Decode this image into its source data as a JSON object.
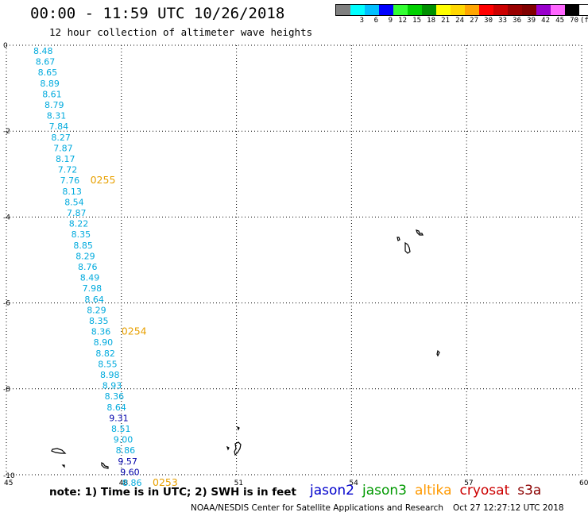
{
  "header": {
    "title": "00:00 - 11:59 UTC 10/26/2018",
    "subtitle": "12 hour collection of altimeter wave heights"
  },
  "legend": {
    "unit": "(ft)",
    "bins": [
      {
        "label": "",
        "color": "#808080"
      },
      {
        "label": "3",
        "color": "#00ffff"
      },
      {
        "label": "6",
        "color": "#00bfff"
      },
      {
        "label": "9",
        "color": "#0000ff"
      },
      {
        "label": "12",
        "color": "#33ff33"
      },
      {
        "label": "15",
        "color": "#00d000"
      },
      {
        "label": "18",
        "color": "#009000"
      },
      {
        "label": "21",
        "color": "#ffff00"
      },
      {
        "label": "24",
        "color": "#ffd700"
      },
      {
        "label": "27",
        "color": "#ffa500"
      },
      {
        "label": "30",
        "color": "#ff0000"
      },
      {
        "label": "33",
        "color": "#cc0000"
      },
      {
        "label": "36",
        "color": "#990000"
      },
      {
        "label": "39",
        "color": "#800000"
      },
      {
        "label": "42",
        "color": "#9900cc"
      },
      {
        "label": "45",
        "color": "#ff66ff"
      },
      {
        "label": "70",
        "color": "#000000"
      }
    ]
  },
  "map": {
    "lon_range": [
      45,
      60
    ],
    "lat_range": [
      -10,
      0
    ],
    "lon_ticks": [
      "45",
      "48",
      "51",
      "54",
      "57",
      "60"
    ],
    "lat_ticks": [
      "0",
      "-2",
      "-4",
      "-6",
      "-8",
      "-10"
    ],
    "grid": "dotted",
    "track_color": "#00aadd",
    "dark_color": "#0000aa",
    "time_color": "#e8a000",
    "track": [
      {
        "v": "8.48"
      },
      {
        "v": "8.67"
      },
      {
        "v": "8.65"
      },
      {
        "v": "8.89"
      },
      {
        "v": "8.61"
      },
      {
        "v": "8.79"
      },
      {
        "v": "8.31"
      },
      {
        "v": "7.84"
      },
      {
        "v": "8.27"
      },
      {
        "v": "7.87"
      },
      {
        "v": "8.17"
      },
      {
        "v": "7.72"
      },
      {
        "v": "7.76"
      },
      {
        "v": "8.13"
      },
      {
        "v": "8.54"
      },
      {
        "v": "7.87"
      },
      {
        "v": "8.22"
      },
      {
        "v": "8.35"
      },
      {
        "v": "8.85"
      },
      {
        "v": "8.29"
      },
      {
        "v": "8.76"
      },
      {
        "v": "8.49"
      },
      {
        "v": "7.98"
      },
      {
        "v": "8.64"
      },
      {
        "v": "8.29"
      },
      {
        "v": "8.35"
      },
      {
        "v": "8.36"
      },
      {
        "v": "8.90"
      },
      {
        "v": "8.82"
      },
      {
        "v": "8.55"
      },
      {
        "v": "8.98"
      },
      {
        "v": "8.93"
      },
      {
        "v": "8.36"
      },
      {
        "v": "8.64"
      },
      {
        "v": "9.31",
        "dark": true
      },
      {
        "v": "8.51"
      },
      {
        "v": "9.00"
      },
      {
        "v": "8.86"
      },
      {
        "v": "9.57",
        "dark": true
      },
      {
        "v": "9.60",
        "dark": true
      },
      {
        "v": "8.86"
      }
    ],
    "times": [
      {
        "label": "0255",
        "at": 12
      },
      {
        "label": "0254",
        "at": 26
      },
      {
        "label": "0253",
        "at": 40
      }
    ]
  },
  "note": "note: 1) Time is in UTC; 2) SWH is in feet",
  "satellites": [
    {
      "name": "jason2",
      "color": "#0000cc"
    },
    {
      "name": "jason3",
      "color": "#009900"
    },
    {
      "name": "altika",
      "color": "#ff9900"
    },
    {
      "name": "cryosat",
      "color": "#cc0000"
    },
    {
      "name": "s3a",
      "color": "#8b0000"
    }
  ],
  "footer": {
    "credit": "NOAA/NESDIS Center for Satellite Applications and Research",
    "timestamp": "Oct 27 12:27:12 UTC 2018"
  }
}
